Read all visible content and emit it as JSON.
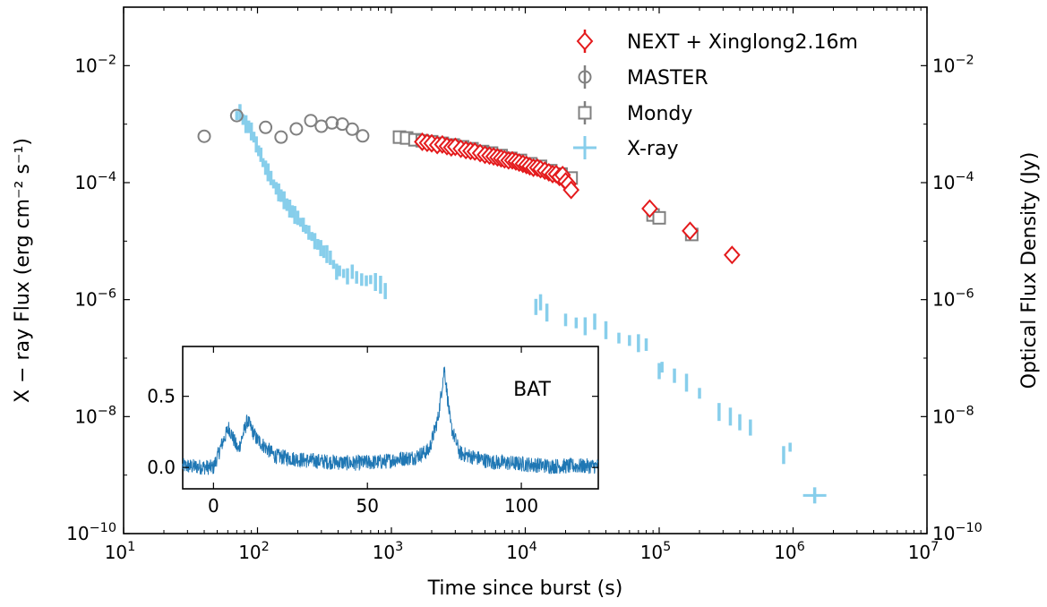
{
  "chart_data": [
    {
      "type": "scatter",
      "xlabel": "Time since burst (s)",
      "ylabel_left": "X − ray Flux (erg cm⁻² s⁻¹)",
      "ylabel_right": "Optical Flux Density (Jy)",
      "x_scale": "log",
      "y_scale": "log",
      "xlim": [
        10,
        10000000
      ],
      "ylim": [
        1e-10,
        0.1
      ],
      "x_ticks": [
        {
          "value": 10,
          "base": "10",
          "exp": "1"
        },
        {
          "value": 100,
          "base": "10",
          "exp": "2"
        },
        {
          "value": 1000,
          "base": "10",
          "exp": "3"
        },
        {
          "value": 10000,
          "base": "10",
          "exp": "4"
        },
        {
          "value": 100000,
          "base": "10",
          "exp": "5"
        },
        {
          "value": 1000000,
          "base": "10",
          "exp": "6"
        },
        {
          "value": 10000000,
          "base": "10",
          "exp": "7"
        }
      ],
      "y_ticks": [
        {
          "value": 1e-10,
          "base": "10",
          "exp": "−10"
        },
        {
          "value": 1e-08,
          "base": "10",
          "exp": "−8"
        },
        {
          "value": 1e-06,
          "base": "10",
          "exp": "−6"
        },
        {
          "value": 0.0001,
          "base": "10",
          "exp": "−4"
        },
        {
          "value": 0.01,
          "base": "10",
          "exp": "−2"
        }
      ],
      "legend_position": "top-right",
      "grid": false,
      "series": [
        {
          "name": "NEXT + Xinglong2.16m",
          "marker": "diamond",
          "color": "#e41a1c",
          "points": [
            [
              1700,
              0.0005
            ],
            [
              1850,
              0.00048
            ],
            [
              2000,
              0.00047
            ],
            [
              2200,
              0.00044
            ],
            [
              2400,
              0.00045
            ],
            [
              2600,
              0.00042
            ],
            [
              2800,
              0.0004
            ],
            [
              3000,
              0.00041
            ],
            [
              3300,
              0.00038
            ],
            [
              3600,
              0.00036
            ],
            [
              3900,
              0.00035
            ],
            [
              4200,
              0.00034
            ],
            [
              4600,
              0.00032
            ],
            [
              5000,
              0.0003
            ],
            [
              5400,
              0.00029
            ],
            [
              5800,
              0.00028
            ],
            [
              6200,
              0.00027
            ],
            [
              6600,
              0.00026
            ],
            [
              7000,
              0.00025
            ],
            [
              7500,
              0.00024
            ],
            [
              8000,
              0.00024
            ],
            [
              8500,
              0.00023
            ],
            [
              9000,
              0.00022
            ],
            [
              9600,
              0.00021
            ],
            [
              10200,
              0.0002
            ],
            [
              10800,
              0.00019
            ],
            [
              11500,
              0.00018
            ],
            [
              12300,
              0.00018
            ],
            [
              13000,
              0.00017
            ],
            [
              14000,
              0.00016
            ],
            [
              15000,
              0.00015
            ],
            [
              16000,
              0.00014
            ],
            [
              17000,
              0.00014
            ],
            [
              18000,
              0.000125
            ],
            [
              19000,
              0.000135
            ],
            [
              20000,
              0.000105
            ],
            [
              21000,
              9.5e-05
            ],
            [
              22000,
              7.5e-05
            ],
            [
              85000,
              3.6e-05
            ],
            [
              170000,
              1.5e-05
            ],
            [
              350000,
              5.8e-06
            ]
          ]
        },
        {
          "name": "MASTER",
          "marker": "circle",
          "color": "#808080",
          "points": [
            [
              40,
              0.00062
            ],
            [
              70,
              0.0014
            ],
            [
              115,
              0.00088
            ],
            [
              150,
              0.0006
            ],
            [
              195,
              0.00083
            ],
            [
              250,
              0.00115
            ],
            [
              300,
              0.00092
            ],
            [
              360,
              0.00105
            ],
            [
              430,
              0.001
            ],
            [
              510,
              0.00082
            ],
            [
              610,
              0.00063
            ]
          ]
        },
        {
          "name": "Mondy",
          "marker": "square",
          "color": "#808080",
          "points": [
            [
              1150,
              0.0006
            ],
            [
              1300,
              0.00058
            ],
            [
              1500,
              0.00054
            ],
            [
              1700,
              0.00052
            ],
            [
              2000,
              0.0005
            ],
            [
              2400,
              0.00047
            ],
            [
              2900,
              0.00044
            ],
            [
              3400,
              0.00041
            ],
            [
              4000,
              0.00038
            ],
            [
              4800,
              0.00034
            ],
            [
              5600,
              0.00032
            ],
            [
              6600,
              0.00029
            ],
            [
              7800,
              0.00026
            ],
            [
              9200,
              0.00024
            ],
            [
              11000,
              0.00021
            ],
            [
              13000,
              0.00019
            ],
            [
              15500,
              0.00016
            ],
            [
              18500,
              0.00014
            ],
            [
              22000,
              0.00012
            ],
            [
              90000,
              2.8e-05
            ],
            [
              100000,
              2.5e-05
            ],
            [
              175000,
              1.3e-05
            ]
          ]
        },
        {
          "name": "X-ray",
          "marker": "errorbar",
          "color": "#87ceeb",
          "points": [
            [
              70,
              0.0014
            ],
            [
              74,
              0.0016
            ],
            [
              78,
              0.0012
            ],
            [
              82,
              0.001
            ],
            [
              86,
              0.0009
            ],
            [
              90,
              0.00075
            ],
            [
              94,
              0.0006
            ],
            [
              98,
              0.00045
            ],
            [
              102,
              0.00035
            ],
            [
              106,
              0.0003
            ],
            [
              110,
              0.00022
            ],
            [
              115,
              0.00018
            ],
            [
              120,
              0.00015
            ],
            [
              126,
              0.00012
            ],
            [
              132,
              9.5e-05
            ],
            [
              138,
              8e-05
            ],
            [
              144,
              6.8e-05
            ],
            [
              150,
              6e-05
            ],
            [
              158,
              5e-05
            ],
            [
              166,
              4.2e-05
            ],
            [
              174,
              3.6e-05
            ],
            [
              182,
              3.2e-05
            ],
            [
              190,
              2.8e-05
            ],
            [
              200,
              2.5e-05
            ],
            [
              210,
              2.1e-05
            ],
            [
              220,
              1.9e-05
            ],
            [
              230,
              1.6e-05
            ],
            [
              242,
              1.4e-05
            ],
            [
              255,
              1.2e-05
            ],
            [
              268,
              1e-05
            ],
            [
              282,
              8.8e-06
            ],
            [
              297,
              7.6e-06
            ],
            [
              313,
              6.6e-06
            ],
            [
              330,
              6e-06
            ],
            [
              350,
              5.2e-06
            ],
            [
              370,
              4e-06
            ],
            [
              390,
              3e-06
            ],
            [
              410,
              3.1e-06
            ],
            [
              440,
              2.8e-06
            ],
            [
              470,
              2.5e-06
            ],
            [
              510,
              3e-06
            ],
            [
              550,
              2.4e-06
            ],
            [
              600,
              2.2e-06
            ],
            [
              650,
              2.1e-06
            ],
            [
              700,
              2.2e-06
            ],
            [
              760,
              2e-06
            ],
            [
              830,
              1.8e-06
            ],
            [
              900,
              1.4e-06
            ],
            [
              12000,
              7.5e-07
            ],
            [
              13000,
              9e-07
            ],
            [
              14500,
              6e-07
            ],
            [
              20000,
              4.5e-07
            ],
            [
              24000,
              4e-07
            ],
            [
              28000,
              3.5e-07
            ],
            [
              33000,
              4.2e-07
            ],
            [
              40000,
              3e-07
            ],
            [
              50000,
              2.2e-07
            ],
            [
              60000,
              2e-07
            ],
            [
              70000,
              1.8e-07
            ],
            [
              80000,
              1.7e-07
            ],
            [
              100000,
              6e-08
            ],
            [
              105000,
              7e-08
            ],
            [
              130000,
              5e-08
            ],
            [
              160000,
              3.8e-08
            ],
            [
              200000,
              2.5e-08
            ],
            [
              280000,
              1.2e-08
            ],
            [
              340000,
              1e-08
            ],
            [
              400000,
              8e-09
            ],
            [
              480000,
              6.5e-09
            ],
            [
              850000,
              2.2e-09
            ],
            [
              950000,
              3e-09
            ],
            [
              1450000,
              4.5e-10
            ]
          ]
        }
      ]
    },
    {
      "type": "line",
      "panel": "inset",
      "label": "BAT",
      "xlim": [
        -10,
        125
      ],
      "ylim": [
        -0.15,
        0.85
      ],
      "x_ticks": [
        0,
        50,
        100
      ],
      "y_ticks": [
        0.0,
        0.5
      ],
      "x_tick_labels": [
        "0",
        "50",
        "100"
      ],
      "y_tick_labels": [
        "0.0",
        "0.5"
      ],
      "color": "#1f77b4",
      "peaks": [
        [
          -10,
          0.01
        ],
        [
          0,
          0.0
        ],
        [
          3,
          0.18
        ],
        [
          5,
          0.28
        ],
        [
          8,
          0.12
        ],
        [
          11,
          0.33
        ],
        [
          14,
          0.2
        ],
        [
          20,
          0.08
        ],
        [
          30,
          0.05
        ],
        [
          45,
          0.03
        ],
        [
          55,
          0.04
        ],
        [
          60,
          0.06
        ],
        [
          65,
          0.07
        ],
        [
          70,
          0.12
        ],
        [
          73,
          0.35
        ],
        [
          75,
          0.7
        ],
        [
          77,
          0.3
        ],
        [
          80,
          0.1
        ],
        [
          90,
          0.04
        ],
        [
          110,
          0.01
        ],
        [
          125,
          0.01
        ]
      ]
    }
  ]
}
